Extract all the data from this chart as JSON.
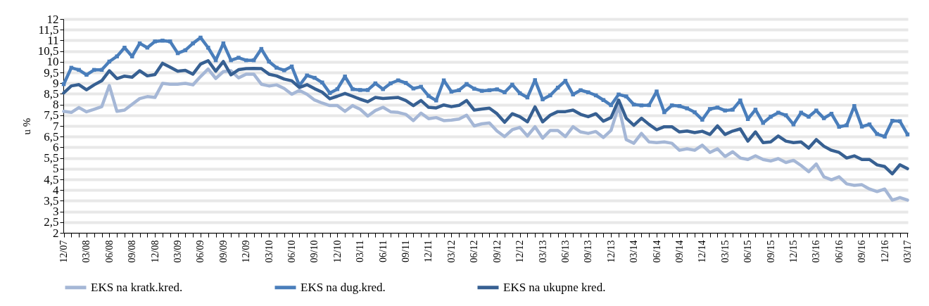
{
  "chart_data": {
    "type": "line",
    "ylabel": "u %",
    "categories": [
      "12/07",
      null,
      null,
      "03/08",
      null,
      null,
      "06/08",
      null,
      null,
      "09/08",
      null,
      null,
      "12/08",
      null,
      null,
      "03/09",
      null,
      null,
      "06/09",
      null,
      null,
      "09/09",
      null,
      null,
      "12/09",
      null,
      null,
      "03/10",
      null,
      null,
      "06/10",
      null,
      null,
      "09/10",
      null,
      null,
      "12/10",
      null,
      null,
      "03/11",
      null,
      null,
      "06/11",
      null,
      null,
      "09/11",
      null,
      null,
      "12/11",
      null,
      null,
      "03/12",
      null,
      null,
      "06/12",
      null,
      null,
      "09/12",
      null,
      null,
      "12/12",
      null,
      null,
      "03/13",
      null,
      null,
      "06/13",
      null,
      null,
      "09/13",
      null,
      null,
      "12/13",
      null,
      null,
      "03/14",
      null,
      null,
      "06/14",
      null,
      null,
      "09/14",
      null,
      null,
      "12/14",
      null,
      null,
      "03/15",
      null,
      null,
      "06/15",
      null,
      null,
      "09/15",
      null,
      null,
      "12/15",
      null,
      null,
      "03/16",
      null,
      null,
      "06/16",
      null,
      null,
      "09/16",
      null,
      null,
      "12/16",
      null,
      null,
      "03/17"
    ],
    "series": [
      {
        "name": "EKS na kratk.kred.",
        "color": "#a5b7d6",
        "marker": "none",
        "values": [
          7.68,
          7.63,
          7.86,
          7.66,
          7.78,
          7.9,
          8.89,
          7.68,
          7.74,
          8.01,
          8.28,
          8.37,
          8.33,
          8.99,
          8.95,
          8.95,
          8.99,
          8.92,
          9.31,
          9.66,
          9.22,
          9.54,
          9.58,
          9.25,
          9.42,
          9.42,
          8.95,
          8.87,
          8.92,
          8.75,
          8.48,
          8.66,
          8.48,
          8.21,
          8.07,
          7.95,
          7.95,
          7.68,
          7.95,
          7.78,
          7.46,
          7.72,
          7.87,
          7.66,
          7.63,
          7.54,
          7.25,
          7.6,
          7.34,
          7.39,
          7.25,
          7.27,
          7.32,
          7.5,
          7.0,
          7.1,
          7.14,
          6.76,
          6.5,
          6.82,
          6.93,
          6.53,
          6.96,
          6.43,
          6.79,
          6.79,
          6.5,
          6.96,
          6.72,
          6.65,
          6.74,
          6.46,
          6.79,
          7.93,
          6.36,
          6.19,
          6.65,
          6.25,
          6.22,
          6.25,
          6.19,
          5.86,
          5.93,
          5.86,
          6.1,
          5.76,
          5.93,
          5.57,
          5.79,
          5.5,
          5.43,
          5.6,
          5.43,
          5.36,
          5.47,
          5.29,
          5.39,
          5.15,
          4.86,
          5.22,
          4.62,
          4.48,
          4.62,
          4.29,
          4.22,
          4.25,
          4.05,
          3.93,
          4.05,
          3.53,
          3.65,
          3.53
        ]
      },
      {
        "name": "EKS na dug.kred.",
        "color": "#4a7ebb",
        "marker": "square",
        "values": [
          8.95,
          9.72,
          9.62,
          9.39,
          9.62,
          9.62,
          10.01,
          10.25,
          10.66,
          10.25,
          10.86,
          10.66,
          10.95,
          10.99,
          10.95,
          10.4,
          10.54,
          10.86,
          11.13,
          10.66,
          10.07,
          10.86,
          10.07,
          10.19,
          10.07,
          10.07,
          10.6,
          10.01,
          9.72,
          9.6,
          9.78,
          8.89,
          9.36,
          9.25,
          9.03,
          8.54,
          8.72,
          9.31,
          8.72,
          8.68,
          8.68,
          8.99,
          8.72,
          8.99,
          9.13,
          9.01,
          8.75,
          8.83,
          8.4,
          8.19,
          9.13,
          8.6,
          8.67,
          8.96,
          8.74,
          8.64,
          8.67,
          8.71,
          8.57,
          8.93,
          8.53,
          8.33,
          9.14,
          8.24,
          8.43,
          8.79,
          9.11,
          8.47,
          8.67,
          8.57,
          8.43,
          8.21,
          7.97,
          8.47,
          8.38,
          8.0,
          7.96,
          7.97,
          8.61,
          7.64,
          7.96,
          7.93,
          7.82,
          7.64,
          7.29,
          7.79,
          7.86,
          7.72,
          7.76,
          8.19,
          7.32,
          7.76,
          7.14,
          7.43,
          7.62,
          7.5,
          7.07,
          7.62,
          7.43,
          7.72,
          7.36,
          7.57,
          6.96,
          7.03,
          7.93,
          6.97,
          7.07,
          6.62,
          6.5,
          7.24,
          7.22,
          6.6
        ]
      },
      {
        "name": "EKS na ukupne kred.",
        "color": "#376092",
        "marker": "none",
        "values": [
          8.54,
          8.87,
          8.93,
          8.69,
          8.92,
          9.11,
          9.58,
          9.21,
          9.33,
          9.28,
          9.58,
          9.34,
          9.4,
          9.93,
          9.75,
          9.56,
          9.6,
          9.42,
          9.89,
          10.05,
          9.56,
          10.01,
          9.39,
          9.63,
          9.68,
          9.69,
          9.68,
          9.42,
          9.34,
          9.19,
          9.11,
          8.8,
          8.93,
          8.74,
          8.58,
          8.27,
          8.39,
          8.52,
          8.39,
          8.25,
          8.13,
          8.33,
          8.28,
          8.31,
          8.33,
          8.19,
          7.95,
          8.19,
          7.87,
          7.84,
          7.98,
          7.9,
          7.96,
          8.19,
          7.74,
          7.79,
          7.83,
          7.57,
          7.17,
          7.57,
          7.43,
          7.19,
          7.89,
          7.19,
          7.5,
          7.67,
          7.67,
          7.74,
          7.54,
          7.43,
          7.57,
          7.22,
          7.39,
          8.21,
          7.36,
          7.03,
          7.36,
          7.07,
          6.82,
          6.96,
          6.96,
          6.72,
          6.76,
          6.69,
          6.75,
          6.6,
          7.0,
          6.6,
          6.76,
          6.86,
          6.29,
          6.72,
          6.22,
          6.25,
          6.53,
          6.29,
          6.22,
          6.25,
          5.96,
          6.36,
          6.05,
          5.86,
          5.76,
          5.5,
          5.6,
          5.43,
          5.43,
          5.18,
          5.1,
          4.76,
          5.18,
          5.0
        ]
      }
    ],
    "ylim": [
      2,
      12
    ],
    "yticks": [
      2,
      {
        "value": 2.5,
        "label": "2,5"
      },
      3,
      {
        "value": 3.5,
        "label": "3,5"
      },
      4,
      {
        "value": 4.5,
        "label": "4,5"
      },
      5,
      {
        "value": 5.5,
        "label": "5,5"
      },
      6,
      {
        "value": 6.5,
        "label": "6,5"
      },
      7,
      {
        "value": 7.5,
        "label": "7,5"
      },
      8,
      {
        "value": 8.5,
        "label": "8,5"
      },
      9,
      {
        "value": 9.5,
        "label": "9,5"
      },
      10,
      {
        "value": 10.5,
        "label": "10,5"
      },
      11,
      {
        "value": 11.5,
        "label": "11,5"
      },
      12
    ],
    "grid": "y",
    "legend": "bottom",
    "line_style": "solid"
  }
}
